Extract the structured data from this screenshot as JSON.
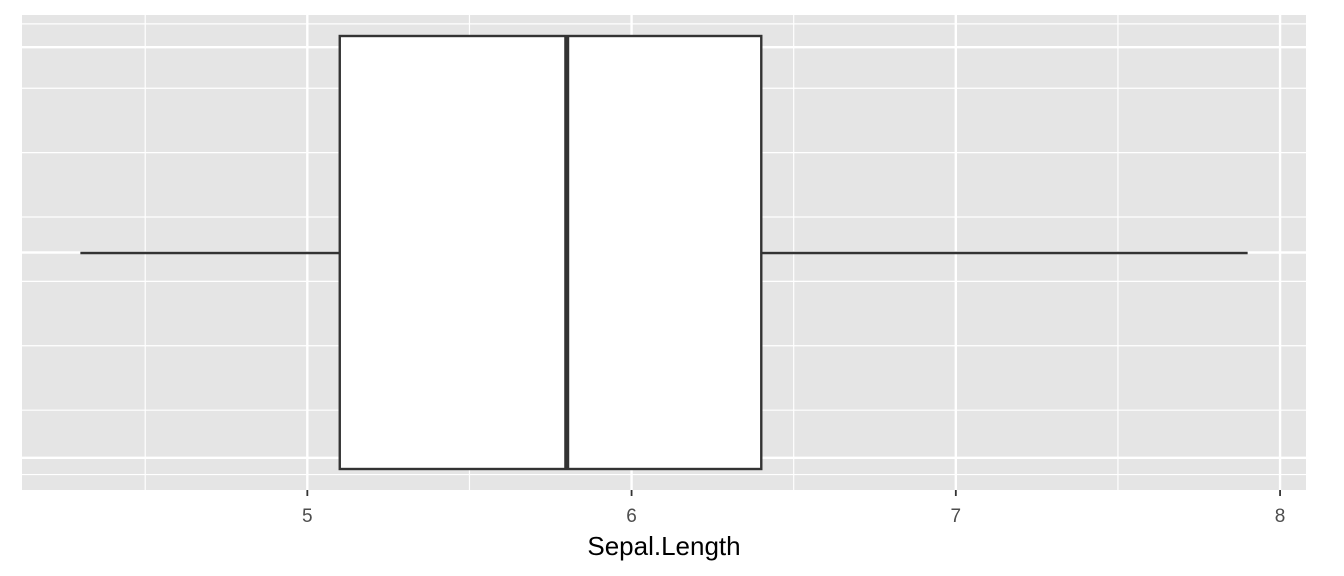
{
  "chart_data": {
    "type": "boxplot",
    "xlabel": "Sepal.Length",
    "xlim": [
      4.12,
      8.08
    ],
    "x_ticks": [
      5,
      6,
      7,
      8
    ],
    "x_tick_labels": [
      "5",
      "6",
      "7",
      "8"
    ],
    "x_minor_ticks": [
      4.5,
      5.5,
      6.5,
      7.5
    ],
    "box": {
      "min": 4.3,
      "q1": 5.1,
      "median": 5.8,
      "q3": 6.4,
      "max": 7.9
    },
    "grid": true,
    "legend": "none",
    "colors": {
      "panel_background": "#e5e5e5",
      "grid": "#ffffff",
      "box_fill": "#ffffff",
      "box_stroke": "#333333",
      "tick_text": "#4d4d4d"
    }
  }
}
